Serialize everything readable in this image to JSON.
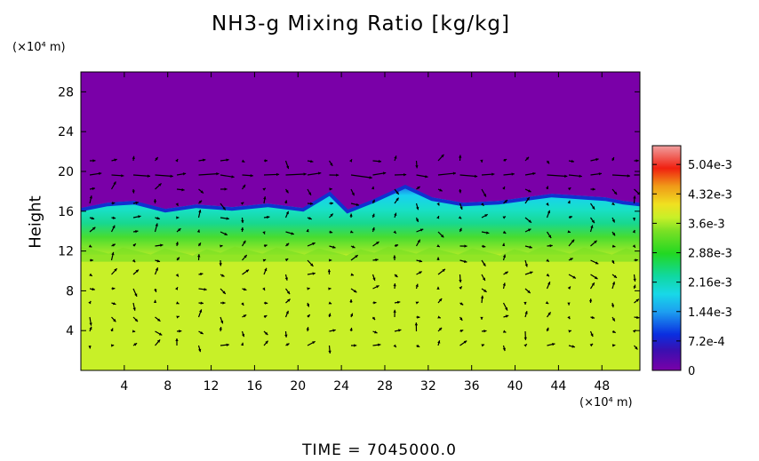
{
  "chart_data": {
    "type": "heatmap",
    "title": "NH3-g Mixing Ratio [kg/kg]",
    "xlabel": "",
    "ylabel": "Height",
    "x_unit": "(×10⁴ m)",
    "y_unit": "(×10⁴ m)",
    "xlim": [
      0,
      51.5
    ],
    "ylim": [
      0,
      30
    ],
    "x_ticks": [
      "4",
      "8",
      "12",
      "16",
      "20",
      "24",
      "28",
      "32",
      "36",
      "40",
      "44",
      "48"
    ],
    "y_ticks": [
      "4",
      "8",
      "12",
      "16",
      "20",
      "24",
      "28"
    ],
    "colorbar": {
      "min": 0,
      "max": 0.0055,
      "labels": [
        "5.04e-3",
        "4.32e-3",
        "3.6e-3",
        "2.88e-3",
        "2.16e-3",
        "1.44e-3",
        "7.2e-4",
        "0"
      ],
      "label_values": [
        0.00504,
        0.00432,
        0.0036,
        0.00288,
        0.00216,
        0.00144,
        0.00072,
        0
      ]
    },
    "regions": [
      {
        "name": "upper layer",
        "y_range": [
          16.5,
          30
        ],
        "value": 0
      },
      {
        "name": "transition band",
        "y_range": [
          12,
          16.5
        ],
        "value": 0.0023
      },
      {
        "name": "lower layer",
        "y_range": [
          0,
          12
        ],
        "value": 0.0031
      }
    ],
    "annotations": [
      "TIME  =  7045000.0"
    ]
  },
  "colors": {
    "upper": "#7a00a8",
    "lower": "#c8f028",
    "background": "#ffffff"
  },
  "time_label": "TIME  =  7045000.0"
}
